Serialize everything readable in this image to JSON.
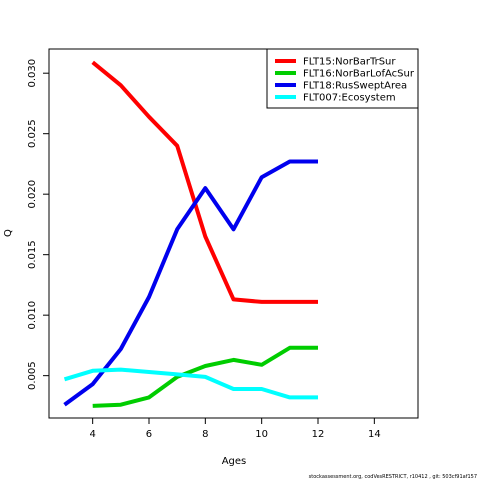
{
  "chart_data": {
    "type": "line",
    "title": "",
    "xlabel": "Ages",
    "ylabel": "Q",
    "xlim": [
      2.45,
      15.55
    ],
    "ylim": [
      0.0015,
      0.032
    ],
    "x_ticks": [
      4,
      6,
      8,
      10,
      12,
      14
    ],
    "x_tick_labels": [
      "4",
      "6",
      "8",
      "10",
      "12",
      "14"
    ],
    "y_ticks": [
      0.005,
      0.01,
      0.015,
      0.02,
      0.025,
      0.03
    ],
    "y_tick_labels": [
      "0.005",
      "0.010",
      "0.015",
      "0.020",
      "0.025",
      "0.030"
    ],
    "grid": false,
    "legend_position": "top-right",
    "series": [
      {
        "name": "FLT15:NorBarTrSur",
        "color": "#ff0000",
        "x": [
          4,
          5,
          6,
          7,
          8,
          9,
          10,
          11,
          12
        ],
        "y": [
          0.0309,
          0.029,
          0.0264,
          0.024,
          0.0165,
          0.0113,
          0.0111,
          0.0111,
          0.0111
        ]
      },
      {
        "name": "FLT16:NorBarLofAcSur",
        "color": "#00cd00",
        "x": [
          4,
          5,
          6,
          7,
          8,
          9,
          10,
          11,
          12
        ],
        "y": [
          0.0025,
          0.0026,
          0.0032,
          0.0049,
          0.0058,
          0.0063,
          0.0059,
          0.0073,
          0.0073
        ]
      },
      {
        "name": "FLT18:RusSweptArea",
        "color": "#0000ee",
        "x": [
          3,
          4,
          5,
          6,
          7,
          8,
          9,
          10,
          11,
          12
        ],
        "y": [
          0.0026,
          0.0043,
          0.0072,
          0.0115,
          0.0171,
          0.0205,
          0.0171,
          0.0214,
          0.0227,
          0.0227
        ]
      },
      {
        "name": "FLT007:Ecosystem",
        "color": "#00ffff",
        "x": [
          3,
          4,
          5,
          6,
          7,
          8,
          9,
          10,
          11,
          12
        ],
        "y": [
          0.0047,
          0.0054,
          0.0055,
          0.0053,
          0.0051,
          0.0049,
          0.0039,
          0.0039,
          0.0032,
          0.0032
        ]
      }
    ]
  },
  "footer": {
    "credit": "stockassessment.org, codVesRESTRICT, r10412 , git: 503cf91af157"
  }
}
